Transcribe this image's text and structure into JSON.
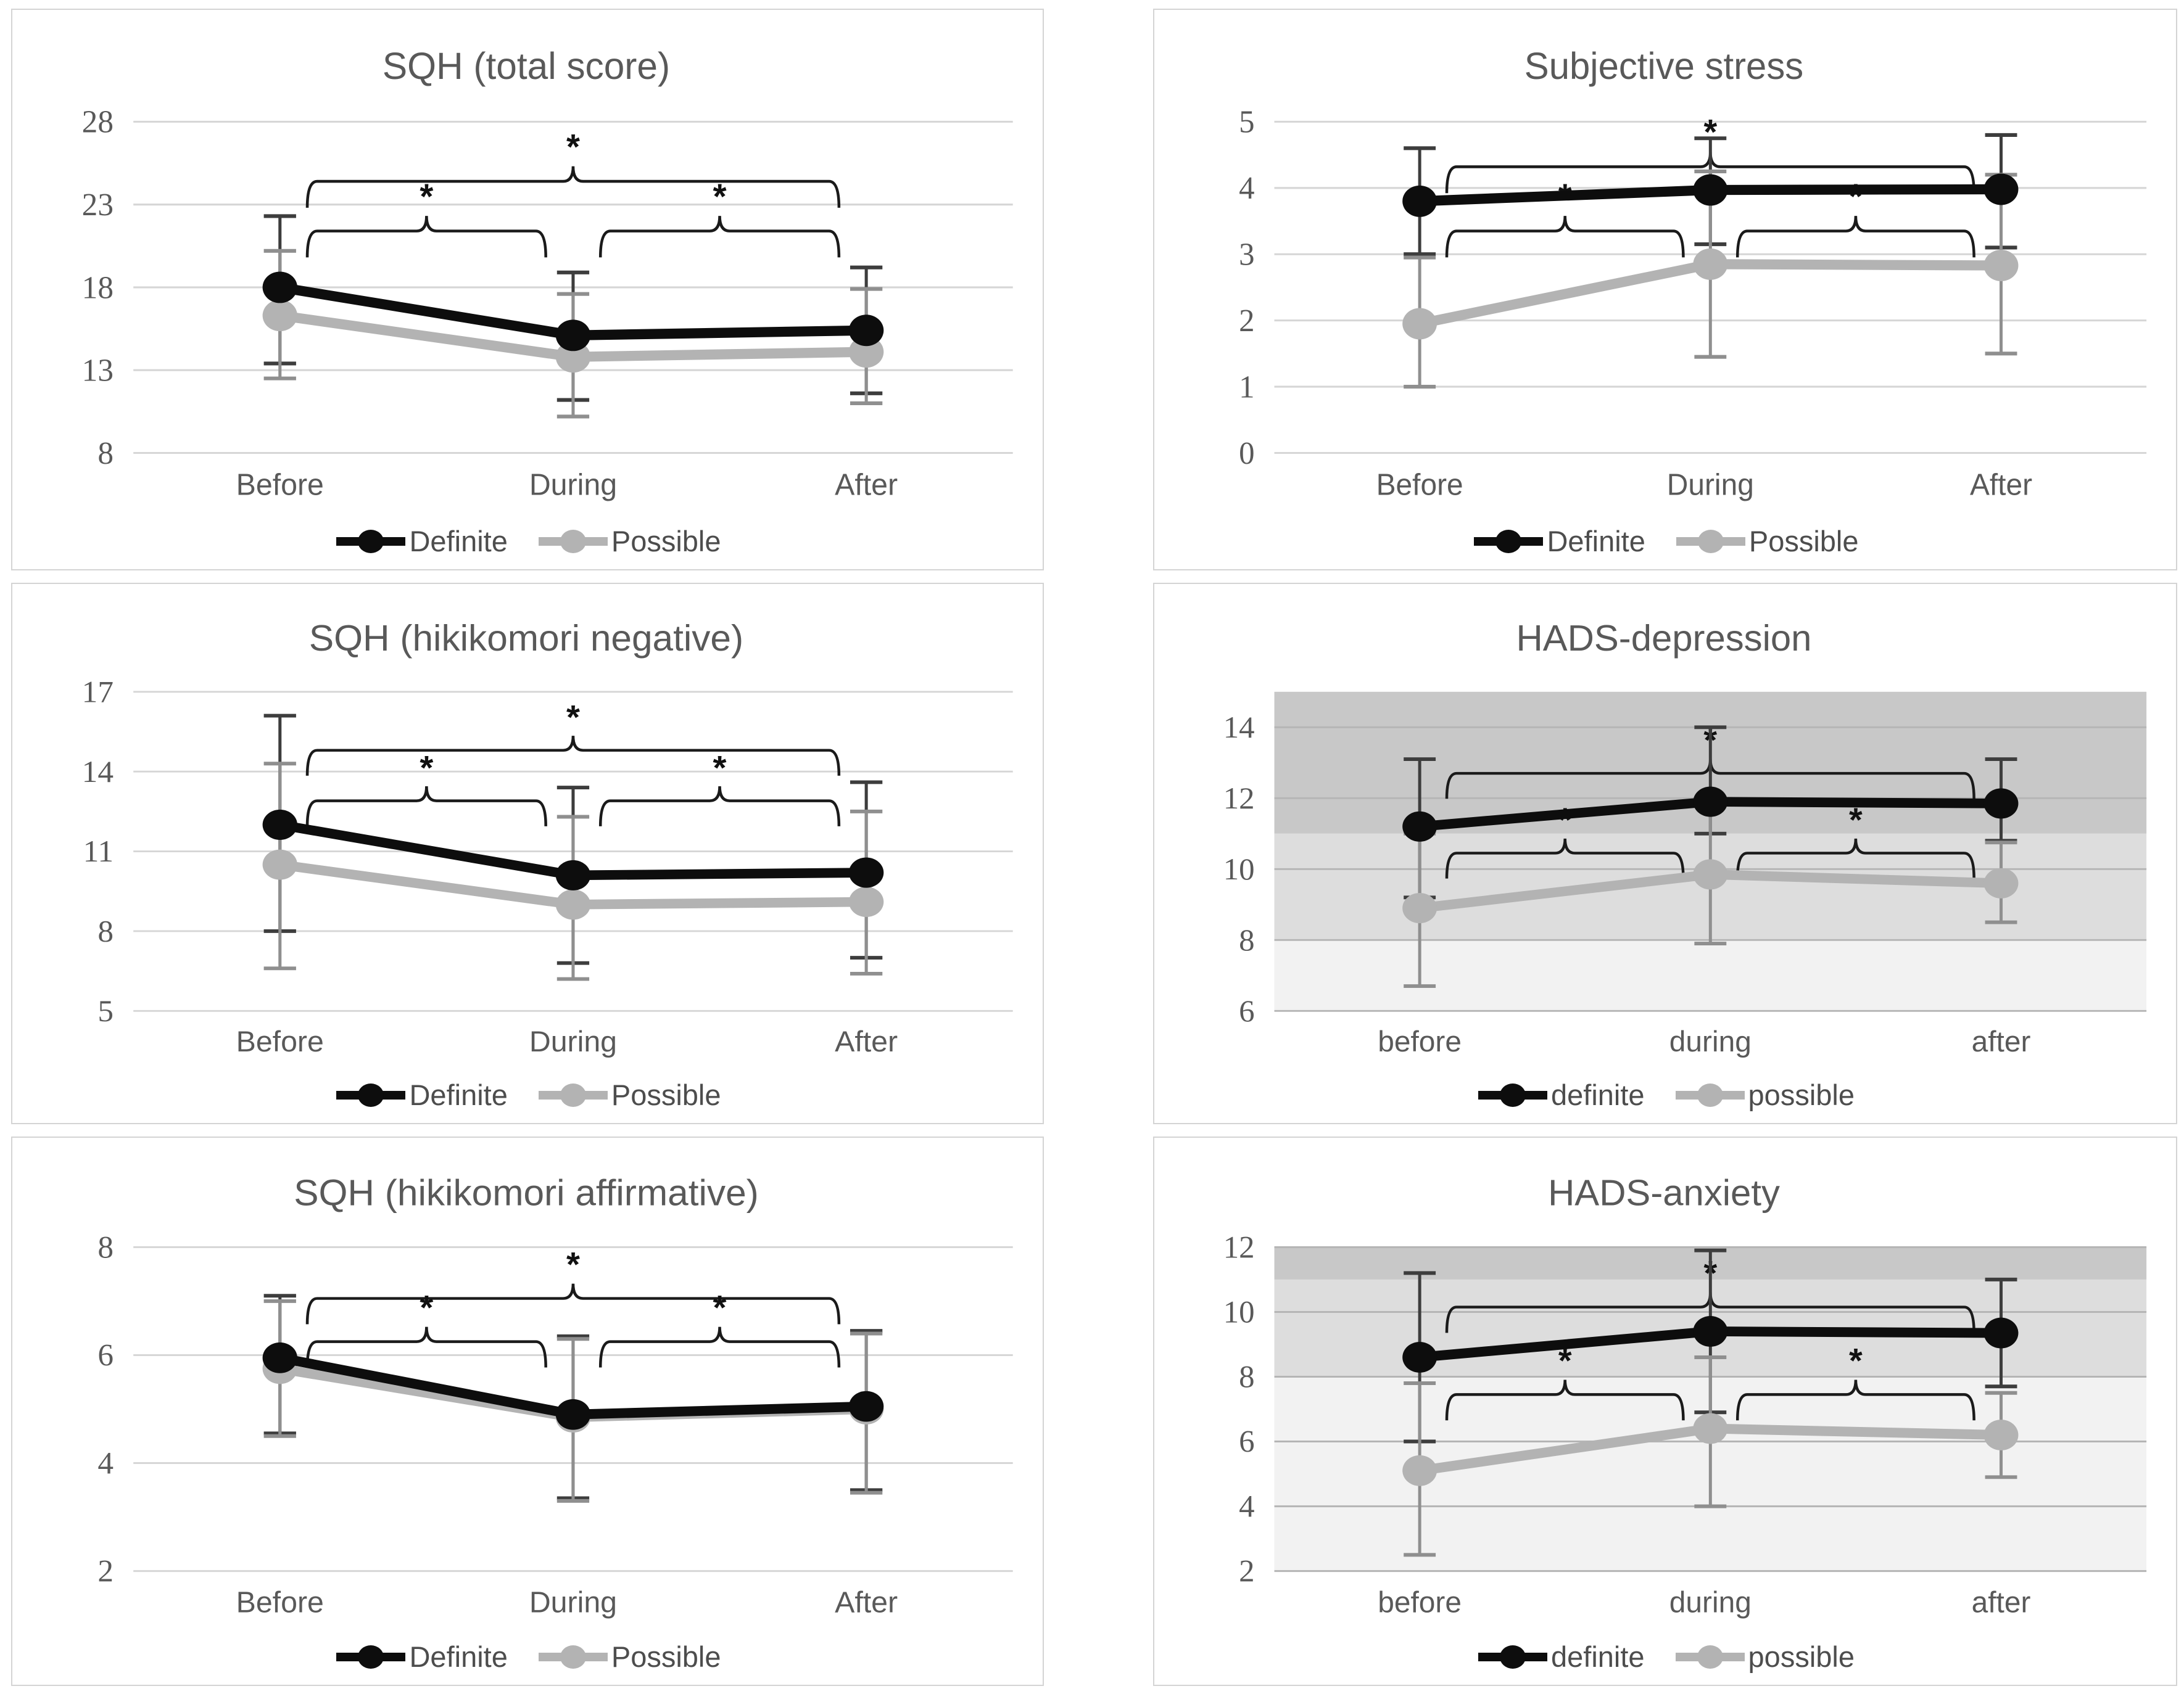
{
  "figure": {
    "panels_layout": "2 columns x 3 rows",
    "background": "#ffffff",
    "text_color": "#595959",
    "gridline_color": "#d6d6d6",
    "band_gridline_color": "#b5b5b5",
    "bracket_color": "#1a1a1a"
  },
  "chart_data": [
    {
      "type": "line",
      "title": "SQH (total score)",
      "categories": [
        "Before",
        "During",
        "After"
      ],
      "ylim": [
        8,
        28
      ],
      "yticks": [
        28,
        23,
        18,
        13,
        8
      ],
      "grid": true,
      "legend_position": "bottom",
      "bands": [],
      "series": [
        {
          "name": "Definite",
          "color": "#0d0d0d",
          "err_color": "#3d3d3d",
          "values": [
            18.0,
            15.1,
            15.4
          ],
          "err_hi": [
            22.3,
            18.9,
            19.2
          ],
          "err_lo": [
            13.4,
            11.2,
            11.6
          ]
        },
        {
          "name": "Possible",
          "color": "#b3b3b3",
          "err_color": "#8f8f8f",
          "values": [
            16.3,
            13.8,
            14.1
          ],
          "err_hi": [
            20.2,
            17.6,
            17.9
          ],
          "err_lo": [
            12.5,
            10.2,
            11.0
          ]
        }
      ],
      "significance_brackets": [
        {
          "from": 0,
          "to": 2,
          "y": 24.4,
          "label": "*"
        },
        {
          "from": 0,
          "to": 1,
          "y": 21.4,
          "label": "*"
        },
        {
          "from": 1,
          "to": 2,
          "y": 21.4,
          "label": "*"
        }
      ]
    },
    {
      "type": "line",
      "title": "Subjective stress",
      "categories": [
        "Before",
        "During",
        "After"
      ],
      "ylim": [
        0,
        5
      ],
      "yticks": [
        5,
        4,
        3,
        2,
        1,
        0
      ],
      "grid": true,
      "legend_position": "bottom",
      "bands": [],
      "series": [
        {
          "name": "Definite",
          "color": "#0d0d0d",
          "err_color": "#3d3d3d",
          "values": [
            3.8,
            3.97,
            3.98
          ],
          "err_hi": [
            4.6,
            4.75,
            4.8
          ],
          "err_lo": [
            3.0,
            3.15,
            3.1
          ]
        },
        {
          "name": "Possible",
          "color": "#b3b3b3",
          "err_color": "#8f8f8f",
          "values": [
            1.95,
            2.85,
            2.83
          ],
          "err_hi": [
            2.95,
            4.25,
            4.2
          ],
          "err_lo": [
            1.0,
            1.45,
            1.5
          ]
        }
      ],
      "significance_brackets": [
        {
          "from": 0,
          "to": 2,
          "y": 4.32,
          "label": "*"
        },
        {
          "from": 0,
          "to": 1,
          "y": 3.35,
          "label": "*"
        },
        {
          "from": 1,
          "to": 2,
          "y": 3.35,
          "label": "*"
        }
      ]
    },
    {
      "type": "line",
      "title": "SQH  (hikikomori negative)",
      "categories": [
        "Before",
        "During",
        "After"
      ],
      "ylim": [
        5,
        17
      ],
      "yticks": [
        17,
        14,
        11,
        8,
        5
      ],
      "grid": true,
      "legend_position": "bottom",
      "bands": [],
      "series": [
        {
          "name": "Definite",
          "color": "#0d0d0d",
          "err_color": "#3d3d3d",
          "values": [
            12.0,
            10.1,
            10.2
          ],
          "err_hi": [
            16.1,
            13.4,
            13.6
          ],
          "err_lo": [
            8.0,
            6.8,
            7.0
          ]
        },
        {
          "name": "Possible",
          "color": "#b3b3b3",
          "err_color": "#8f8f8f",
          "values": [
            10.5,
            9.0,
            9.1
          ],
          "err_hi": [
            14.3,
            12.3,
            12.5
          ],
          "err_lo": [
            6.6,
            6.2,
            6.4
          ]
        }
      ],
      "significance_brackets": [
        {
          "from": 0,
          "to": 2,
          "y": 14.8,
          "label": "*"
        },
        {
          "from": 0,
          "to": 1,
          "y": 12.9,
          "label": "*"
        },
        {
          "from": 1,
          "to": 2,
          "y": 12.9,
          "label": "*"
        }
      ]
    },
    {
      "type": "line",
      "title": "HADS-depression",
      "categories": [
        "before",
        "during",
        "after"
      ],
      "ylim": [
        6,
        15
      ],
      "yticks": [
        14,
        12,
        10,
        8,
        6
      ],
      "grid": true,
      "legend_position": "bottom",
      "bands": [
        {
          "from": 11,
          "to": 15,
          "color": "#c8c8c8"
        },
        {
          "from": 8,
          "to": 11,
          "color": "#dddddd"
        },
        {
          "from": 6,
          "to": 8,
          "color": "#f2f2f2"
        }
      ],
      "series": [
        {
          "name": "definite",
          "color": "#0d0d0d",
          "err_color": "#3d3d3d",
          "values": [
            11.2,
            11.9,
            11.85
          ],
          "err_hi": [
            13.1,
            14.0,
            13.1
          ],
          "err_lo": [
            9.2,
            11.0,
            10.8
          ]
        },
        {
          "name": "possible",
          "color": "#b3b3b3",
          "err_color": "#8f8f8f",
          "values": [
            8.9,
            9.85,
            9.6
          ],
          "err_hi": [
            11.0,
            11.85,
            10.75
          ],
          "err_lo": [
            6.7,
            7.9,
            8.5
          ]
        }
      ],
      "significance_brackets": [
        {
          "from": 0,
          "to": 2,
          "y": 12.7,
          "label": "*"
        },
        {
          "from": 0,
          "to": 1,
          "y": 10.45,
          "label": "*"
        },
        {
          "from": 1,
          "to": 2,
          "y": 10.45,
          "label": "*"
        }
      ]
    },
    {
      "type": "line",
      "title": "SQH (hikikomori affirmative)",
      "categories": [
        "Before",
        "During",
        "After"
      ],
      "ylim": [
        2,
        8
      ],
      "yticks": [
        8,
        6,
        4,
        2
      ],
      "grid": true,
      "legend_position": "bottom",
      "bands": [],
      "series": [
        {
          "name": "Definite",
          "color": "#0d0d0d",
          "err_color": "#3d3d3d",
          "values": [
            5.95,
            4.9,
            5.05
          ],
          "err_hi": [
            7.1,
            6.35,
            6.45
          ],
          "err_lo": [
            4.55,
            3.35,
            3.5
          ]
        },
        {
          "name": "Possible",
          "color": "#b3b3b3",
          "err_color": "#8f8f8f",
          "values": [
            5.75,
            4.85,
            5.0
          ],
          "err_hi": [
            7.0,
            6.3,
            6.4
          ],
          "err_lo": [
            4.5,
            3.3,
            3.45
          ]
        }
      ],
      "significance_brackets": [
        {
          "from": 0,
          "to": 2,
          "y": 7.05,
          "label": "*"
        },
        {
          "from": 0,
          "to": 1,
          "y": 6.25,
          "label": "*"
        },
        {
          "from": 1,
          "to": 2,
          "y": 6.25,
          "label": "*"
        }
      ]
    },
    {
      "type": "line",
      "title": "HADS-anxiety",
      "categories": [
        "before",
        "during",
        "after"
      ],
      "ylim": [
        2,
        12
      ],
      "yticks": [
        12,
        10,
        8,
        6,
        4,
        2
      ],
      "grid": true,
      "legend_position": "bottom",
      "bands": [
        {
          "from": 11,
          "to": 12,
          "color": "#c8c8c8"
        },
        {
          "from": 8,
          "to": 11,
          "color": "#dddddd"
        },
        {
          "from": 2,
          "to": 8,
          "color": "#f2f2f2"
        }
      ],
      "series": [
        {
          "name": "definite",
          "color": "#0d0d0d",
          "err_color": "#3d3d3d",
          "values": [
            8.6,
            9.4,
            9.35
          ],
          "err_hi": [
            11.2,
            11.9,
            11.0
          ],
          "err_lo": [
            6.0,
            6.9,
            7.7
          ]
        },
        {
          "name": "possible",
          "color": "#b3b3b3",
          "err_color": "#8f8f8f",
          "values": [
            5.1,
            6.4,
            6.2
          ],
          "err_hi": [
            7.8,
            8.6,
            7.5
          ],
          "err_lo": [
            2.5,
            4.0,
            4.9
          ]
        }
      ],
      "significance_brackets": [
        {
          "from": 0,
          "to": 2,
          "y": 10.15,
          "label": "*"
        },
        {
          "from": 0,
          "to": 1,
          "y": 7.45,
          "label": "*"
        },
        {
          "from": 1,
          "to": 2,
          "y": 7.45,
          "label": "*"
        }
      ]
    }
  ]
}
